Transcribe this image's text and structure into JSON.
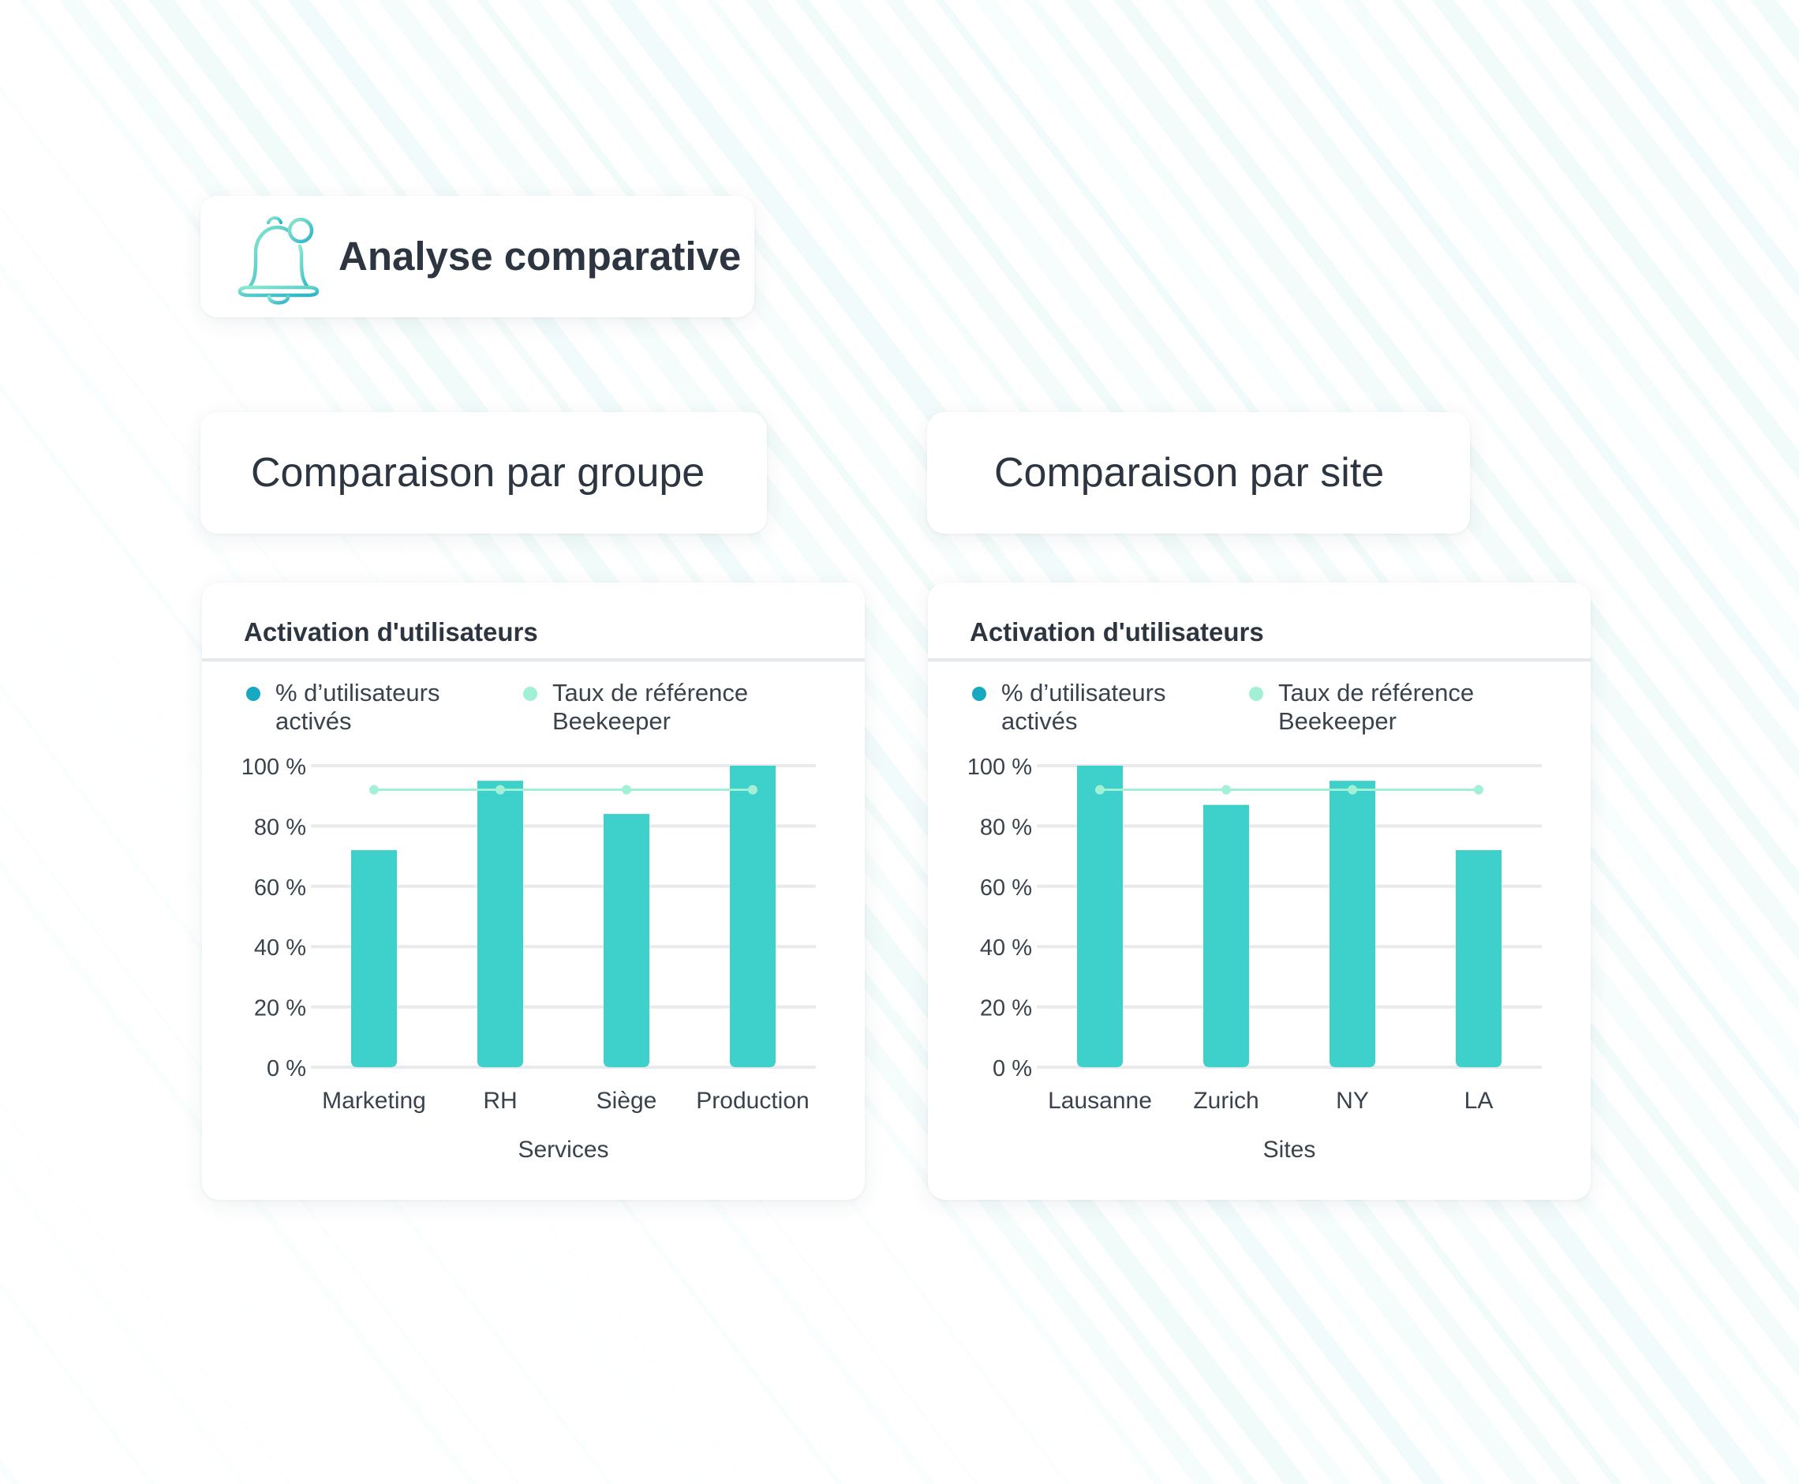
{
  "header": {
    "title": "Analyse comparative",
    "icon": "bell-icon"
  },
  "sections": [
    {
      "title": "Comparaison par groupe"
    },
    {
      "title": "Comparaison par site"
    }
  ],
  "colors": {
    "bar": "#3ed1cc",
    "reference": "#a2f0d6",
    "legend_bar_dot": "#17a9c1",
    "legend_ref_dot": "#a2f0d6",
    "text": "#2c3540"
  },
  "chart_data": [
    {
      "type": "bar",
      "title": "Activation d'utilisateurs",
      "xlabel": "Services",
      "ylabel": "",
      "categories": [
        "Marketing",
        "RH",
        "Siège",
        "Production"
      ],
      "series": [
        {
          "name": "% d’utilisateurs activés",
          "type": "bar",
          "values": [
            72,
            95,
            84,
            100
          ]
        },
        {
          "name": "Taux de référence Beekeeper",
          "type": "line",
          "values": [
            92,
            92,
            92,
            92
          ]
        }
      ],
      "ylim": [
        0,
        100
      ],
      "yticks": [
        "0 %",
        "20 %",
        "40 %",
        "60 %",
        "80 %",
        "100 %"
      ],
      "ytick_values": [
        0,
        20,
        40,
        60,
        80,
        100
      ],
      "grid": true,
      "legend": "top"
    },
    {
      "type": "bar",
      "title": "Activation d'utilisateurs",
      "xlabel": "Sites",
      "ylabel": "",
      "categories": [
        "Lausanne",
        "Zurich",
        "NY",
        "LA"
      ],
      "series": [
        {
          "name": "% d’utilisateurs activés",
          "type": "bar",
          "values": [
            100,
            87,
            95,
            72
          ]
        },
        {
          "name": "Taux de référence Beekeeper",
          "type": "line",
          "values": [
            92,
            92,
            92,
            92
          ]
        }
      ],
      "ylim": [
        0,
        100
      ],
      "yticks": [
        "0 %",
        "20 %",
        "40 %",
        "60 %",
        "80 %",
        "100 %"
      ],
      "ytick_values": [
        0,
        20,
        40,
        60,
        80,
        100
      ],
      "grid": true,
      "legend": "top"
    }
  ]
}
